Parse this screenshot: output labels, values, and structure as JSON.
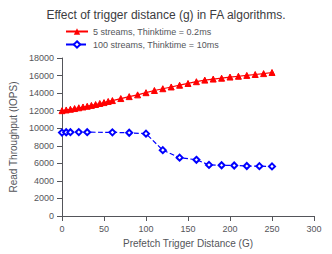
{
  "chart_data": {
    "type": "line",
    "title": "Effect of trigger distance (g) in FA algorithms.",
    "xlabel": "Prefetch Trigger Distance (G)",
    "ylabel": "Read Throughput (IOPS)",
    "xlim": [
      0,
      300
    ],
    "ylim": [
      0,
      18000
    ],
    "xticks": [
      0,
      50,
      100,
      150,
      200,
      250,
      300
    ],
    "yticks": [
      0,
      2000,
      4000,
      6000,
      8000,
      10000,
      12000,
      14000,
      16000,
      18000
    ],
    "grid": false,
    "legend": "upper left",
    "series": [
      {
        "name": "5 streams, Thinktime = 0.2ms",
        "color": "red",
        "line_style": "solid",
        "marker": "triangle",
        "x": [
          0,
          5,
          10,
          15,
          20,
          25,
          30,
          35,
          40,
          45,
          50,
          55,
          60,
          70,
          80,
          90,
          100,
          110,
          120,
          130,
          140,
          150,
          160,
          170,
          180,
          190,
          200,
          210,
          220,
          230,
          240,
          250
        ],
        "values": [
          12000,
          12080,
          12160,
          12240,
          12330,
          12420,
          12500,
          12600,
          12700,
          12820,
          12920,
          13050,
          13150,
          13380,
          13600,
          13800,
          14050,
          14300,
          14500,
          14700,
          14900,
          15100,
          15300,
          15480,
          15600,
          15700,
          15830,
          15920,
          16020,
          16120,
          16220,
          16350
        ]
      },
      {
        "name": "100 streams, Thinktime = 10ms",
        "color": "blue",
        "line_style": "dashed",
        "marker": "hollow_diamond",
        "x": [
          0,
          5,
          10,
          20,
          30,
          60,
          80,
          100,
          120,
          140,
          160,
          175,
          190,
          205,
          220,
          235,
          250
        ],
        "values": [
          9500,
          9540,
          9550,
          9560,
          9550,
          9530,
          9480,
          9380,
          7500,
          6650,
          6400,
          5820,
          5780,
          5750,
          5700,
          5680,
          5650
        ]
      }
    ]
  }
}
